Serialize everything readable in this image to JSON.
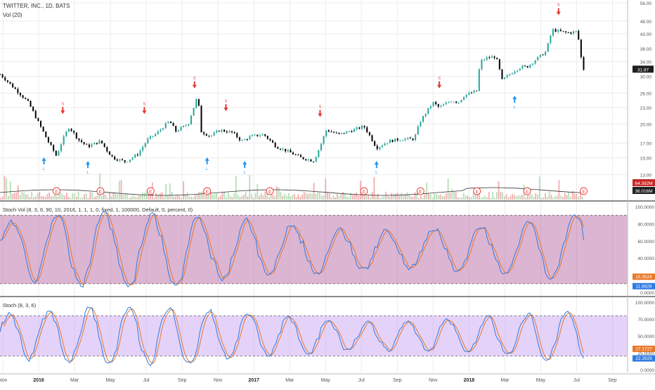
{
  "header": {
    "symbol_title": "TWITTER, INC., 1D, BATS",
    "volume_study": "Vol (20)"
  },
  "colors": {
    "candle_up": "#26a69a",
    "candle_down": "#000000",
    "arrow_up": "#2196f3",
    "arrow_down": "#e53935",
    "stoch_vol_fill": "#b25a9b",
    "stoch_fill": "#c59bf0",
    "stoch_k": "#e8792a",
    "stoch_d": "#2f7be3",
    "price_badge_bg": "#1f1f1f",
    "vol_badge_red": "#c62828",
    "earnings_marker": "#e53935"
  },
  "chart_data": [
    {
      "type": "candlestick",
      "title": "TWITTER, INC., 1D, BATS",
      "x_ticks": [
        "Nov",
        "2016",
        "Mar",
        "May",
        "Jul",
        "Sep",
        "Nov",
        "2017",
        "Mar",
        "May",
        "Jul",
        "Sep",
        "Nov",
        "2018",
        "Mar",
        "May",
        "Jul",
        "Sep"
      ],
      "y_ticks": [
        56.0,
        48.0,
        43.0,
        38.0,
        34.0,
        30.0,
        26.0,
        23.0,
        20.0,
        17.0,
        15.0,
        13.0
      ],
      "ylim": [
        12.0,
        56.0
      ],
      "y_scale": "log",
      "last_price": "31.87",
      "price_path": [
        [
          0.0,
          30.5
        ],
        [
          0.02,
          27.5
        ],
        [
          0.045,
          24.0
        ],
        [
          0.06,
          20.5
        ],
        [
          0.075,
          17.5
        ],
        [
          0.09,
          15.2
        ],
        [
          0.1,
          17.5
        ],
        [
          0.11,
          19.5
        ],
        [
          0.125,
          17.5
        ],
        [
          0.14,
          16.5
        ],
        [
          0.16,
          17.3
        ],
        [
          0.17,
          16.0
        ],
        [
          0.18,
          15.0
        ],
        [
          0.2,
          14.5
        ],
        [
          0.22,
          15.5
        ],
        [
          0.235,
          17.5
        ],
        [
          0.25,
          18.5
        ],
        [
          0.26,
          19.5
        ],
        [
          0.27,
          20.5
        ],
        [
          0.28,
          18.8
        ],
        [
          0.3,
          20.0
        ],
        [
          0.31,
          23.5
        ],
        [
          0.315,
          25.5
        ],
        [
          0.32,
          18.8
        ],
        [
          0.335,
          18.0
        ],
        [
          0.35,
          19.0
        ],
        [
          0.37,
          18.6
        ],
        [
          0.385,
          17.3
        ],
        [
          0.4,
          18.0
        ],
        [
          0.42,
          18.3
        ],
        [
          0.44,
          16.5
        ],
        [
          0.46,
          15.8
        ],
        [
          0.48,
          15.0
        ],
        [
          0.5,
          14.6
        ],
        [
          0.51,
          16.5
        ],
        [
          0.52,
          19.0
        ],
        [
          0.54,
          18.3
        ],
        [
          0.56,
          18.9
        ],
        [
          0.58,
          19.6
        ],
        [
          0.6,
          16.3
        ],
        [
          0.62,
          17.3
        ],
        [
          0.64,
          17.6
        ],
        [
          0.66,
          17.6
        ],
        [
          0.67,
          20.5
        ],
        [
          0.69,
          24.0
        ],
        [
          0.7,
          23.0
        ],
        [
          0.72,
          24.5
        ],
        [
          0.73,
          24.0
        ],
        [
          0.74,
          25.5
        ],
        [
          0.76,
          26.5
        ],
        [
          0.765,
          34.0
        ],
        [
          0.775,
          35.0
        ],
        [
          0.79,
          35.5
        ],
        [
          0.8,
          29.0
        ],
        [
          0.82,
          31.5
        ],
        [
          0.83,
          32.5
        ],
        [
          0.84,
          32.5
        ],
        [
          0.85,
          34.0
        ],
        [
          0.87,
          37.0
        ],
        [
          0.88,
          44.5
        ],
        [
          0.89,
          44.0
        ],
        [
          0.9,
          43.5
        ],
        [
          0.91,
          43.5
        ],
        [
          0.92,
          44.0
        ],
        [
          0.925,
          36.0
        ],
        [
          0.93,
          31.87
        ]
      ],
      "volume_badges": [
        "64.392M",
        "36.016M"
      ],
      "earnings_marker_label": "E",
      "earnings_positions": [
        0.09,
        0.16,
        0.24,
        0.33,
        0.43,
        0.58,
        0.67,
        0.76,
        0.84,
        0.93
      ],
      "signals_up": [
        [
          0.07,
          16.0
        ],
        [
          0.14,
          15.5
        ],
        [
          0.33,
          16.0
        ],
        [
          0.39,
          15.5
        ],
        [
          0.6,
          15.5
        ],
        [
          0.82,
          27.0
        ]
      ],
      "signals_down": [
        [
          0.1,
          20.5
        ],
        [
          0.23,
          20.5
        ],
        [
          0.31,
          25.5
        ],
        [
          0.36,
          21.0
        ],
        [
          0.51,
          20.0
        ],
        [
          0.7,
          25.5
        ],
        [
          0.89,
          47.5
        ]
      ],
      "signal_labels": [
        "L",
        "S"
      ]
    },
    {
      "type": "line",
      "title": "Stoch Vol (8, 3, 6, 90, 10, 2016, 1, 1, 1, 0, fixed, 1, 100000, Default, 0, percent, 0)",
      "y_ticks": [
        "100.0000",
        "80.0000",
        "60.0000",
        "40.0000",
        "20.0000",
        "0.0000"
      ],
      "ylim": [
        0,
        100
      ],
      "band": [
        10,
        90
      ],
      "series": [
        {
          "name": "",
          "last": "15.3524"
        },
        {
          "name": "",
          "last": "11.6628"
        }
      ]
    },
    {
      "type": "line",
      "title": "Stoch (8, 3, 6)",
      "y_ticks": [
        "100.0000",
        "75.0000",
        "50.0000",
        "25.0000",
        "0.0000"
      ],
      "ylim": [
        0,
        100
      ],
      "band": [
        20,
        80
      ],
      "series": [
        {
          "name": "",
          "last": "27.1727"
        },
        {
          "name": "",
          "last": "22.3929"
        }
      ]
    }
  ]
}
